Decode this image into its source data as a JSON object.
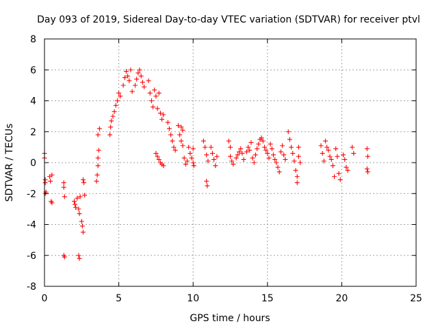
{
  "chart_data": {
    "type": "scatter",
    "title": "Day 093 of 2019, Sidereal Day-to-day VTEC variation (SDTVAR) for receiver ptvl",
    "xlabel": "GPS time / hours",
    "ylabel": "SDTVAR / TECUs",
    "xlim": [
      0,
      25
    ],
    "ylim": [
      -8,
      8
    ],
    "xticks": [
      0,
      5,
      10,
      15,
      20,
      25
    ],
    "yticks": [
      -8,
      -6,
      -4,
      -2,
      0,
      2,
      4,
      6,
      8
    ],
    "grid": true,
    "marker": "plus",
    "color": "#ff0000",
    "series": [
      {
        "name": "SDTVAR",
        "points": [
          [
            0.0,
            0.6
          ],
          [
            0.0,
            0.3
          ],
          [
            0.05,
            -1.1
          ],
          [
            0.05,
            -1.3
          ],
          [
            0.05,
            -2.0
          ],
          [
            0.1,
            -1.9
          ],
          [
            0.35,
            -0.9
          ],
          [
            0.4,
            -1.2
          ],
          [
            0.45,
            -2.5
          ],
          [
            0.5,
            -2.6
          ],
          [
            0.5,
            -0.8
          ],
          [
            1.3,
            -1.3
          ],
          [
            1.3,
            -1.6
          ],
          [
            1.35,
            -2.2
          ],
          [
            1.3,
            -6.0
          ],
          [
            1.35,
            -6.1
          ],
          [
            2.0,
            -2.5
          ],
          [
            2.05,
            -2.7
          ],
          [
            2.1,
            -2.9
          ],
          [
            2.2,
            -2.3
          ],
          [
            2.3,
            -3.0
          ],
          [
            2.35,
            -3.3
          ],
          [
            2.3,
            -6.0
          ],
          [
            2.35,
            -6.2
          ],
          [
            2.4,
            -2.2
          ],
          [
            2.5,
            -3.8
          ],
          [
            2.55,
            -4.1
          ],
          [
            2.6,
            -4.5
          ],
          [
            2.6,
            -1.1
          ],
          [
            2.65,
            -1.3
          ],
          [
            2.7,
            -2.1
          ],
          [
            3.5,
            -1.2
          ],
          [
            3.55,
            -0.8
          ],
          [
            3.6,
            -0.2
          ],
          [
            3.6,
            0.3
          ],
          [
            3.65,
            0.8
          ],
          [
            3.6,
            1.8
          ],
          [
            3.7,
            2.2
          ],
          [
            4.4,
            1.8
          ],
          [
            4.45,
            2.3
          ],
          [
            4.5,
            2.7
          ],
          [
            4.6,
            3.0
          ],
          [
            4.7,
            3.3
          ],
          [
            4.8,
            3.7
          ],
          [
            4.9,
            4.0
          ],
          [
            5.0,
            4.5
          ],
          [
            5.1,
            4.3
          ],
          [
            5.3,
            5.0
          ],
          [
            5.4,
            5.5
          ],
          [
            5.5,
            5.9
          ],
          [
            5.6,
            5.6
          ],
          [
            5.7,
            5.3
          ],
          [
            5.8,
            6.0
          ],
          [
            5.9,
            4.6
          ],
          [
            6.1,
            5.0
          ],
          [
            6.2,
            5.4
          ],
          [
            6.3,
            5.8
          ],
          [
            6.4,
            6.0
          ],
          [
            6.5,
            5.6
          ],
          [
            6.6,
            5.2
          ],
          [
            6.7,
            4.9
          ],
          [
            7.0,
            5.3
          ],
          [
            7.1,
            4.5
          ],
          [
            7.2,
            4.0
          ],
          [
            7.3,
            3.6
          ],
          [
            7.4,
            4.7
          ],
          [
            7.5,
            4.3
          ],
          [
            7.6,
            3.5
          ],
          [
            7.7,
            4.5
          ],
          [
            7.8,
            3.2
          ],
          [
            7.9,
            2.8
          ],
          [
            8.0,
            3.1
          ],
          [
            7.5,
            0.6
          ],
          [
            7.6,
            0.4
          ],
          [
            7.7,
            0.2
          ],
          [
            7.8,
            0.0
          ],
          [
            7.9,
            -0.1
          ],
          [
            8.0,
            -0.2
          ],
          [
            8.3,
            2.6
          ],
          [
            8.4,
            2.2
          ],
          [
            8.5,
            1.8
          ],
          [
            8.6,
            1.4
          ],
          [
            8.7,
            1.0
          ],
          [
            8.8,
            0.8
          ],
          [
            9.0,
            2.4
          ],
          [
            9.1,
            1.8
          ],
          [
            9.2,
            1.4
          ],
          [
            9.3,
            1.1
          ],
          [
            9.4,
            0.3
          ],
          [
            9.5,
            -0.1
          ],
          [
            9.6,
            0.1
          ],
          [
            9.2,
            2.3
          ],
          [
            9.3,
            2.1
          ],
          [
            9.7,
            1.0
          ],
          [
            9.8,
            0.6
          ],
          [
            9.9,
            0.3
          ],
          [
            10.0,
            0.9
          ],
          [
            10.0,
            0.0
          ],
          [
            10.05,
            -0.2
          ],
          [
            10.7,
            1.4
          ],
          [
            10.8,
            1.0
          ],
          [
            10.9,
            0.5
          ],
          [
            11.0,
            0.1
          ],
          [
            10.9,
            -1.2
          ],
          [
            10.95,
            -1.5
          ],
          [
            11.2,
            1.0
          ],
          [
            11.3,
            0.6
          ],
          [
            11.4,
            0.2
          ],
          [
            11.5,
            -0.2
          ],
          [
            11.6,
            0.4
          ],
          [
            12.4,
            1.4
          ],
          [
            12.5,
            1.0
          ],
          [
            12.5,
            0.4
          ],
          [
            12.6,
            0.1
          ],
          [
            12.7,
            -0.1
          ],
          [
            12.9,
            0.3
          ],
          [
            13.0,
            0.5
          ],
          [
            13.1,
            0.7
          ],
          [
            13.2,
            0.9
          ],
          [
            13.3,
            0.6
          ],
          [
            13.4,
            0.2
          ],
          [
            13.6,
            0.7
          ],
          [
            13.7,
            1.0
          ],
          [
            13.8,
            0.8
          ],
          [
            13.9,
            1.3
          ],
          [
            14.0,
            0.3
          ],
          [
            14.1,
            0.0
          ],
          [
            14.2,
            0.5
          ],
          [
            14.3,
            0.9
          ],
          [
            14.4,
            1.2
          ],
          [
            14.5,
            1.5
          ],
          [
            14.6,
            1.6
          ],
          [
            14.7,
            1.4
          ],
          [
            14.8,
            1.0
          ],
          [
            14.9,
            0.8
          ],
          [
            15.0,
            0.6
          ],
          [
            15.1,
            0.3
          ],
          [
            15.2,
            1.2
          ],
          [
            15.3,
            0.9
          ],
          [
            15.4,
            0.5
          ],
          [
            15.5,
            0.2
          ],
          [
            15.6,
            0.0
          ],
          [
            15.7,
            -0.3
          ],
          [
            15.8,
            -0.6
          ],
          [
            15.9,
            0.7
          ],
          [
            16.0,
            1.1
          ],
          [
            16.1,
            0.5
          ],
          [
            16.2,
            0.2
          ],
          [
            16.4,
            2.0
          ],
          [
            16.5,
            1.5
          ],
          [
            16.6,
            1.0
          ],
          [
            16.7,
            0.6
          ],
          [
            16.8,
            0.1
          ],
          [
            16.9,
            -0.5
          ],
          [
            17.0,
            -0.9
          ],
          [
            17.0,
            -1.3
          ],
          [
            17.1,
            0.4
          ],
          [
            17.1,
            1.0
          ],
          [
            17.2,
            0.0
          ],
          [
            18.6,
            1.1
          ],
          [
            18.7,
            0.6
          ],
          [
            18.8,
            0.1
          ],
          [
            18.9,
            1.4
          ],
          [
            19.0,
            1.0
          ],
          [
            19.1,
            0.8
          ],
          [
            19.2,
            0.4
          ],
          [
            19.3,
            0.2
          ],
          [
            19.4,
            -0.2
          ],
          [
            19.5,
            -0.9
          ],
          [
            19.6,
            0.9
          ],
          [
            19.7,
            0.4
          ],
          [
            19.8,
            -0.7
          ],
          [
            19.9,
            -1.1
          ],
          [
            20.1,
            0.5
          ],
          [
            20.2,
            0.2
          ],
          [
            20.3,
            -0.3
          ],
          [
            20.4,
            -0.5
          ],
          [
            20.7,
            1.0
          ],
          [
            20.8,
            0.6
          ],
          [
            21.7,
            0.9
          ],
          [
            21.75,
            0.4
          ],
          [
            21.7,
            -0.4
          ],
          [
            21.75,
            -0.6
          ]
        ]
      }
    ]
  }
}
